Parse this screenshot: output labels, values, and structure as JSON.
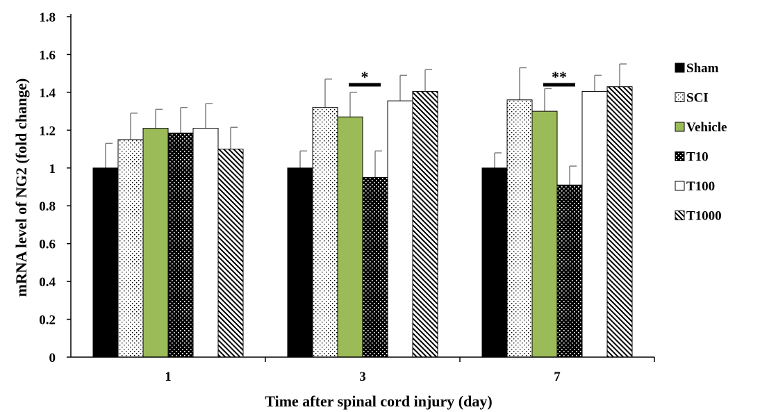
{
  "chart_data": {
    "type": "bar",
    "title": "",
    "xlabel": "Time after spinal cord injury (day)",
    "ylabel": "mRNA level of NG2 (fold change)",
    "ylim": [
      0,
      1.8
    ],
    "yticks": [
      "0",
      "0.2",
      "0.4",
      "0.6",
      "0.8",
      "1",
      "1.2",
      "1.4",
      "1.6",
      "1.8"
    ],
    "categories": [
      "1",
      "3",
      "7"
    ],
    "legend_position": "right",
    "series": [
      {
        "name": "Sham",
        "values": [
          1.0,
          1.0,
          1.0
        ],
        "errors": [
          0.13,
          0.09,
          0.08
        ],
        "pattern": "solid-black"
      },
      {
        "name": "SCI",
        "values": [
          1.15,
          1.32,
          1.36
        ],
        "errors": [
          0.14,
          0.15,
          0.17
        ],
        "pattern": "dots-sparse"
      },
      {
        "name": "Vehicle",
        "values": [
          1.21,
          1.27,
          1.3
        ],
        "errors": [
          0.1,
          0.13,
          0.12
        ],
        "pattern": "solid-green"
      },
      {
        "name": "T10",
        "values": [
          1.185,
          0.95,
          0.91
        ],
        "errors": [
          0.135,
          0.14,
          0.1
        ],
        "pattern": "dots-on-black"
      },
      {
        "name": "T100",
        "values": [
          1.21,
          1.355,
          1.405
        ],
        "errors": [
          0.13,
          0.135,
          0.085
        ],
        "pattern": "solid-white"
      },
      {
        "name": "T1000",
        "values": [
          1.1,
          1.405,
          1.43
        ],
        "errors": [
          0.115,
          0.115,
          0.12
        ],
        "pattern": "diagonal-stripes"
      }
    ],
    "significance": [
      {
        "category": "3",
        "label": "*",
        "between": [
          "Vehicle",
          "T10"
        ]
      },
      {
        "category": "7",
        "label": "**",
        "between": [
          "Vehicle",
          "T10"
        ]
      }
    ],
    "colors": {
      "green": "#9bbb59",
      "black": "#000000",
      "white": "#ffffff",
      "error_bar": "#7f7f7f"
    }
  }
}
